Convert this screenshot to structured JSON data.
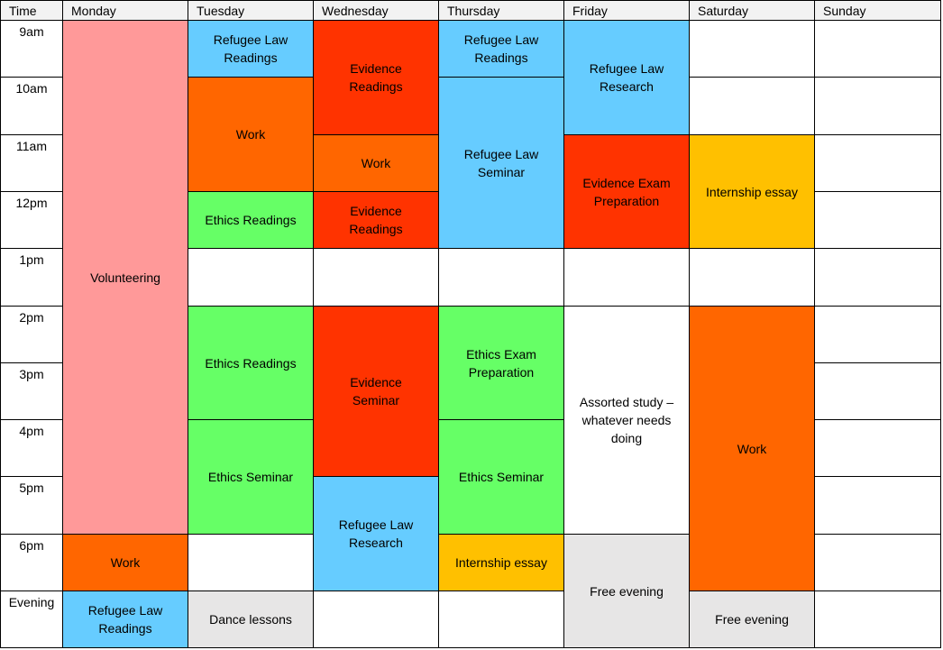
{
  "headers": [
    "Time",
    "Monday",
    "Tuesday",
    "Wednesday",
    "Thursday",
    "Friday",
    "Saturday",
    "Sunday"
  ],
  "times": [
    "9am",
    "10am",
    "11am",
    "12pm",
    "1pm",
    "2pm",
    "3pm",
    "4pm",
    "5pm",
    "6pm",
    "Evening"
  ],
  "colors": {
    "pink": "#ff9999",
    "orange": "#ff6600",
    "red": "#ff3300",
    "blue": "#66ccff",
    "green": "#66ff66",
    "gold": "#ffc000",
    "grey": "#e7e6e6",
    "white": "#ffffff"
  },
  "events": [
    {
      "day": 1,
      "start": 0,
      "span": 9,
      "label": "Volunteering",
      "color": "pink"
    },
    {
      "day": 1,
      "start": 9,
      "span": 1,
      "label": "Work",
      "color": "orange"
    },
    {
      "day": 1,
      "start": 10,
      "span": 1,
      "label": "Refugee Law Readings",
      "color": "blue"
    },
    {
      "day": 2,
      "start": 0,
      "span": 1,
      "label": "Refugee Law Readings",
      "color": "blue"
    },
    {
      "day": 2,
      "start": 1,
      "span": 2,
      "label": "Work",
      "color": "orange"
    },
    {
      "day": 2,
      "start": 3,
      "span": 1,
      "label": "Ethics Readings",
      "color": "green"
    },
    {
      "day": 2,
      "start": 4,
      "span": 1,
      "label": "",
      "color": "white"
    },
    {
      "day": 2,
      "start": 5,
      "span": 2,
      "label": "Ethics Readings",
      "color": "green"
    },
    {
      "day": 2,
      "start": 7,
      "span": 2,
      "label": "Ethics Seminar",
      "color": "green"
    },
    {
      "day": 2,
      "start": 9,
      "span": 1,
      "label": "",
      "color": "white"
    },
    {
      "day": 2,
      "start": 10,
      "span": 1,
      "label": "Dance lessons",
      "color": "grey"
    },
    {
      "day": 3,
      "start": 0,
      "span": 2,
      "label": "Evidence Readings",
      "color": "red"
    },
    {
      "day": 3,
      "start": 2,
      "span": 1,
      "label": "Work",
      "color": "orange"
    },
    {
      "day": 3,
      "start": 3,
      "span": 1,
      "label": "Evidence Readings",
      "color": "red"
    },
    {
      "day": 3,
      "start": 4,
      "span": 1,
      "label": "",
      "color": "white"
    },
    {
      "day": 3,
      "start": 5,
      "span": 3,
      "label": "Evidence Seminar",
      "color": "red"
    },
    {
      "day": 3,
      "start": 8,
      "span": 2,
      "label": "Refugee Law Research",
      "color": "blue"
    },
    {
      "day": 3,
      "start": 10,
      "span": 1,
      "label": "",
      "color": "white"
    },
    {
      "day": 4,
      "start": 0,
      "span": 1,
      "label": "Refugee Law Readings",
      "color": "blue"
    },
    {
      "day": 4,
      "start": 1,
      "span": 3,
      "label": "Refugee Law Seminar",
      "color": "blue"
    },
    {
      "day": 4,
      "start": 4,
      "span": 1,
      "label": "",
      "color": "white"
    },
    {
      "day": 4,
      "start": 5,
      "span": 2,
      "label": "Ethics Exam Preparation",
      "color": "green"
    },
    {
      "day": 4,
      "start": 7,
      "span": 2,
      "label": "Ethics Seminar",
      "color": "green"
    },
    {
      "day": 4,
      "start": 9,
      "span": 1,
      "label": "Internship essay",
      "color": "gold"
    },
    {
      "day": 4,
      "start": 10,
      "span": 1,
      "label": "",
      "color": "white"
    },
    {
      "day": 5,
      "start": 0,
      "span": 2,
      "label": "Refugee Law Research",
      "color": "blue"
    },
    {
      "day": 5,
      "start": 2,
      "span": 2,
      "label": "Evidence Exam Preparation",
      "color": "red"
    },
    {
      "day": 5,
      "start": 4,
      "span": 1,
      "label": "",
      "color": "white"
    },
    {
      "day": 5,
      "start": 5,
      "span": 4,
      "label": "Assorted study – whatever needs doing",
      "color": "white"
    },
    {
      "day": 5,
      "start": 9,
      "span": 2,
      "label": "Free evening",
      "color": "grey"
    },
    {
      "day": 6,
      "start": 0,
      "span": 1,
      "label": "",
      "color": "white"
    },
    {
      "day": 6,
      "start": 1,
      "span": 1,
      "label": "",
      "color": "white"
    },
    {
      "day": 6,
      "start": 2,
      "span": 2,
      "label": "Internship essay",
      "color": "gold"
    },
    {
      "day": 6,
      "start": 4,
      "span": 1,
      "label": "",
      "color": "white"
    },
    {
      "day": 6,
      "start": 5,
      "span": 5,
      "label": "Work",
      "color": "orange"
    },
    {
      "day": 6,
      "start": 10,
      "span": 1,
      "label": "Free evening",
      "color": "grey"
    },
    {
      "day": 7,
      "start": 0,
      "span": 1,
      "label": "",
      "color": "white"
    },
    {
      "day": 7,
      "start": 1,
      "span": 1,
      "label": "",
      "color": "white"
    },
    {
      "day": 7,
      "start": 2,
      "span": 1,
      "label": "",
      "color": "white"
    },
    {
      "day": 7,
      "start": 3,
      "span": 1,
      "label": "",
      "color": "white"
    },
    {
      "day": 7,
      "start": 4,
      "span": 1,
      "label": "",
      "color": "white"
    },
    {
      "day": 7,
      "start": 5,
      "span": 1,
      "label": "",
      "color": "white"
    },
    {
      "day": 7,
      "start": 6,
      "span": 1,
      "label": "",
      "color": "white"
    },
    {
      "day": 7,
      "start": 7,
      "span": 1,
      "label": "",
      "color": "white"
    },
    {
      "day": 7,
      "start": 8,
      "span": 1,
      "label": "",
      "color": "white"
    },
    {
      "day": 7,
      "start": 9,
      "span": 1,
      "label": "",
      "color": "white"
    },
    {
      "day": 7,
      "start": 10,
      "span": 1,
      "label": "",
      "color": "white"
    }
  ]
}
